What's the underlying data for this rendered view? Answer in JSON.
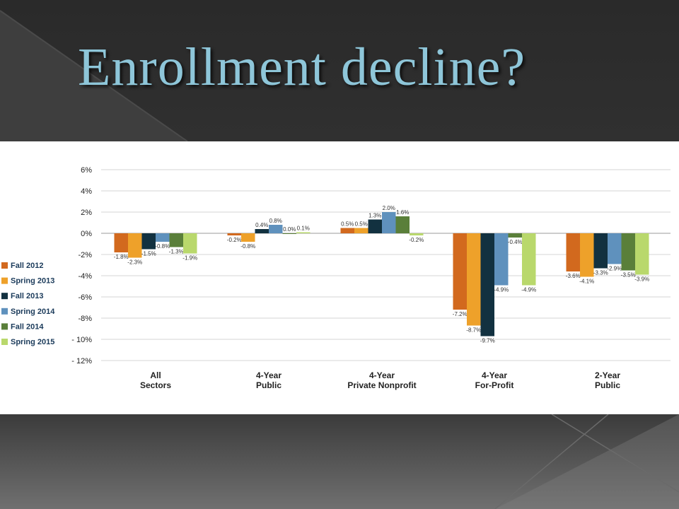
{
  "slide": {
    "title": "Enrollment decline?"
  },
  "chart_data": {
    "type": "bar",
    "title": "",
    "xlabel": "",
    "ylabel": "",
    "categories": [
      [
        "All",
        "Sectors"
      ],
      [
        "4-Year",
        "Public"
      ],
      [
        "4-Year",
        "Private Nonprofit"
      ],
      [
        "4-Year",
        "For-Profit"
      ],
      [
        "2-Year",
        "Public"
      ]
    ],
    "series": [
      {
        "name": "Fall 2012",
        "color": "#d2691e",
        "values": [
          -1.8,
          -0.2,
          0.5,
          -7.2,
          -3.6
        ],
        "labels": [
          "-1.8%",
          "-0.2%",
          "0.5%",
          "-7.2%",
          "-3.6%"
        ]
      },
      {
        "name": "Spring 2013",
        "color": "#eea12a",
        "values": [
          -2.3,
          -0.8,
          0.5,
          -8.7,
          -4.1
        ],
        "labels": [
          "-2.3%",
          "-0.8%",
          "0.5%",
          "-8.7%",
          "-4.1%"
        ]
      },
      {
        "name": "Fall 2013",
        "color": "#123140",
        "values": [
          -1.5,
          0.4,
          1.3,
          -9.7,
          -3.3
        ],
        "labels": [
          "-1.5%",
          "0.4%",
          "1.3%",
          "-9.7%",
          "-3.3%"
        ]
      },
      {
        "name": "Spring 2014",
        "color": "#5f91bd",
        "values": [
          -0.8,
          0.8,
          2.0,
          -4.9,
          -2.9
        ],
        "labels": [
          "-0.8%",
          "0.8%",
          "2.0%",
          "-4.9%",
          "-2.9%"
        ]
      },
      {
        "name": "Fall 2014",
        "color": "#5a7f3a",
        "values": [
          -1.3,
          0.0,
          1.6,
          -0.4,
          -3.5
        ],
        "labels": [
          "-1.3%",
          "0.0%",
          "1.6%",
          "-0.4%",
          "-3.5%"
        ]
      },
      {
        "name": "Spring 2015",
        "color": "#b9d86c",
        "values": [
          -1.9,
          0.1,
          -0.2,
          -4.9,
          -3.9
        ],
        "labels": [
          "-1.9%",
          "0.1%",
          "-0.2%",
          "-4.9%",
          "-3.9%"
        ]
      }
    ],
    "ylim": [
      -12,
      6
    ],
    "yticks": [
      6,
      4,
      2,
      0,
      -2,
      -4,
      -6,
      -8,
      -10,
      -12
    ],
    "ytick_labels": [
      "6%",
      "4%",
      "2%",
      "0%",
      "-2%",
      "-4%",
      "-6%",
      "-8%",
      "- 10%",
      "- 12%"
    ],
    "grid": true,
    "legend_position": "left"
  }
}
